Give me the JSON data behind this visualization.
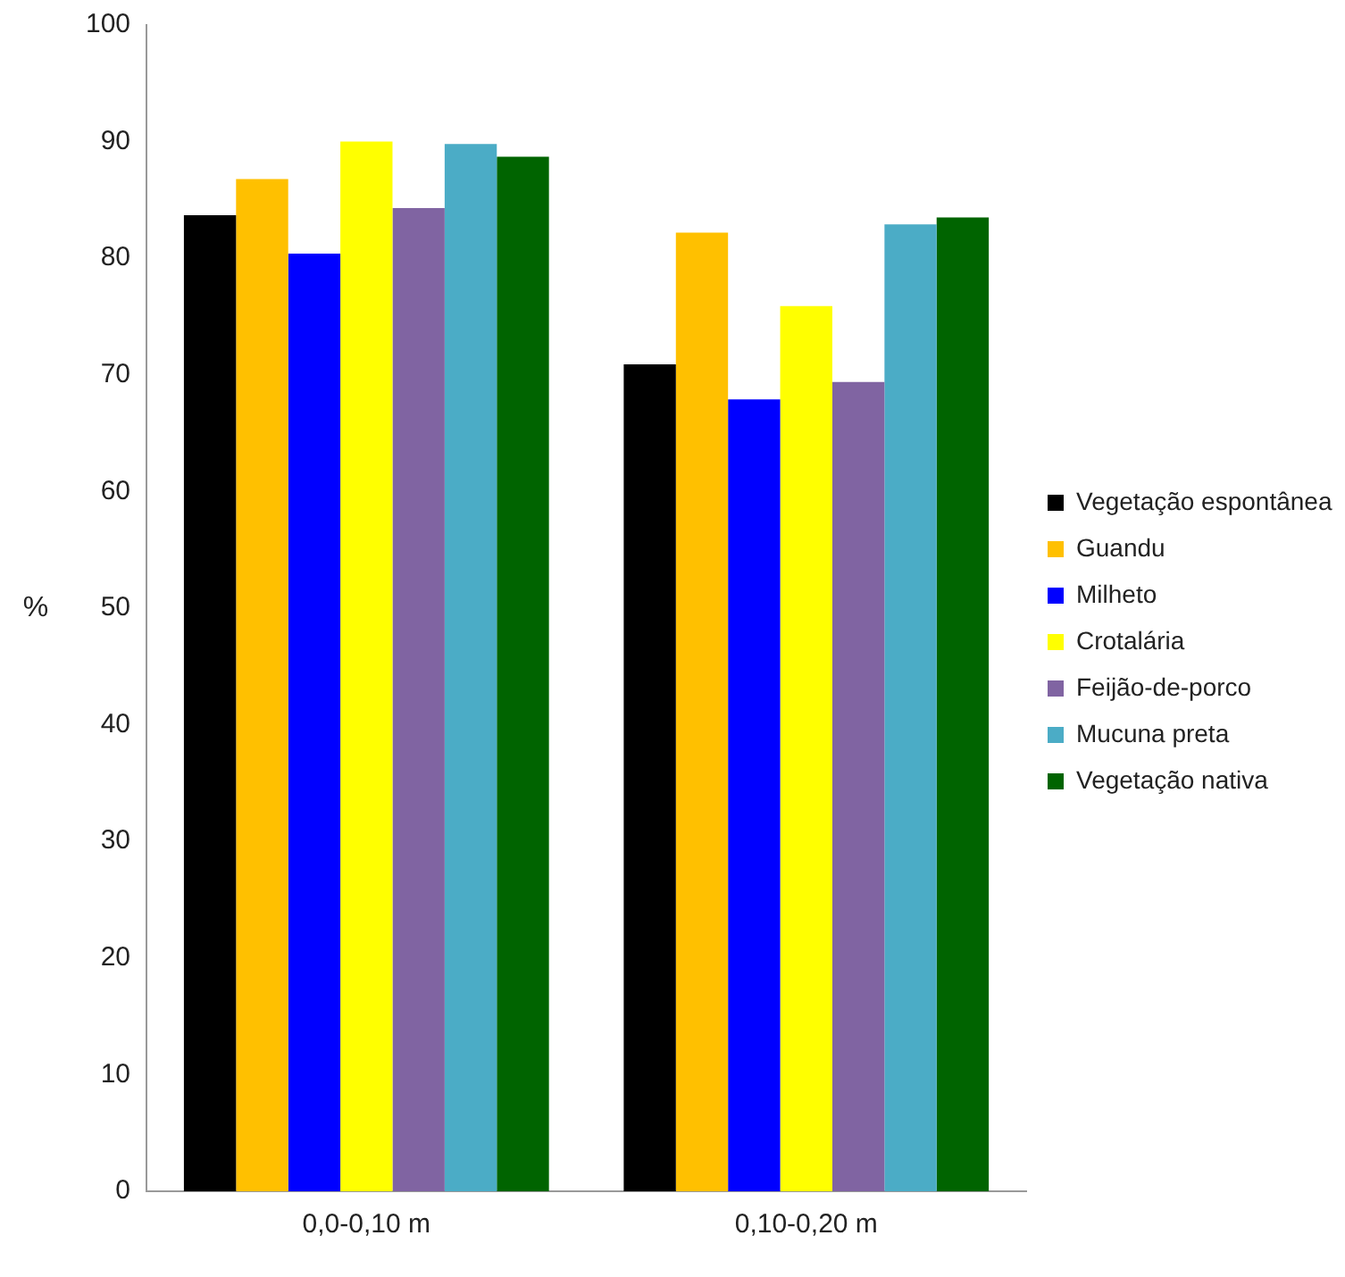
{
  "chart_data": {
    "type": "bar",
    "ylabel": "%",
    "categories": [
      "0,0-0,10 m",
      "0,10-0,20 m"
    ],
    "series": [
      {
        "name": "Vegetação espontânea",
        "color": "#000000",
        "values": [
          83.7,
          70.9
        ]
      },
      {
        "name": "Guandu",
        "color": "#ffc000",
        "values": [
          86.8,
          82.2
        ]
      },
      {
        "name": "Milheto",
        "color": "#0000ff",
        "values": [
          80.4,
          67.9
        ]
      },
      {
        "name": "Crotalária",
        "color": "#ffff00",
        "values": [
          90,
          75.9
        ]
      },
      {
        "name": "Feijão-de-porco",
        "color": "#8064a2",
        "values": [
          84.3,
          69.4
        ]
      },
      {
        "name": "Mucuna preta",
        "color": "#4bacc6",
        "values": [
          89.8,
          82.9
        ]
      },
      {
        "name": "Vegetação nativa",
        "color": "#006400",
        "values": [
          88.7,
          83.5
        ]
      }
    ],
    "ylim": [
      0,
      100
    ],
    "yticks": [
      0,
      10,
      20,
      30,
      40,
      50,
      60,
      70,
      80,
      90,
      100
    ],
    "grid": false,
    "legend": "right"
  }
}
